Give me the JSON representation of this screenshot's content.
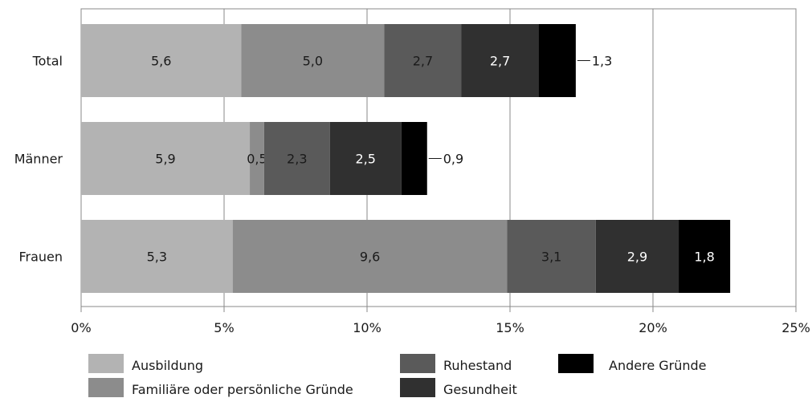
{
  "chart_data": {
    "type": "bar",
    "orientation": "horizontal",
    "stacked": true,
    "categories": [
      "Total",
      "Männer",
      "Frauen"
    ],
    "series": [
      {
        "name": "Ausbildung",
        "color": "#b3b3b3",
        "label_color": "#1a1a1a",
        "values": [
          5.6,
          5.9,
          5.3
        ],
        "labels": [
          "5,6",
          "5,9",
          "5,3"
        ]
      },
      {
        "name": "Familiäre oder persönliche Gründe",
        "color": "#8c8c8c",
        "label_color": "#1a1a1a",
        "values": [
          5.0,
          0.5,
          9.6
        ],
        "labels": [
          "5,0",
          "0,5",
          "9,6"
        ]
      },
      {
        "name": "Ruhestand",
        "color": "#5a5a5a",
        "label_color": "#1a1a1a",
        "values": [
          2.7,
          2.3,
          3.1
        ],
        "labels": [
          "2,7",
          "2,3",
          "3,1"
        ]
      },
      {
        "name": "Gesundheit",
        "color": "#303030",
        "label_color": "#ffffff",
        "values": [
          2.7,
          2.5,
          2.9
        ],
        "labels": [
          "2,7",
          "2,5",
          "2,9"
        ]
      },
      {
        "name": "Andere Gründe",
        "color": "#000000",
        "label_color": "#ffffff",
        "values": [
          1.3,
          0.9,
          1.8
        ],
        "labels": [
          "1,3",
          "0,9",
          "1,8"
        ]
      }
    ],
    "outside_labels": {
      "Total": "1,3",
      "Männer": "0,9"
    },
    "xlim": [
      0,
      25
    ],
    "xticks": [
      0,
      5,
      10,
      15,
      20,
      25
    ],
    "xtick_labels": [
      "0%",
      "5%",
      "10%",
      "15%",
      "20%",
      "25%"
    ],
    "grid": true,
    "legend": "bottom",
    "title": "",
    "xlabel": "",
    "ylabel": ""
  }
}
